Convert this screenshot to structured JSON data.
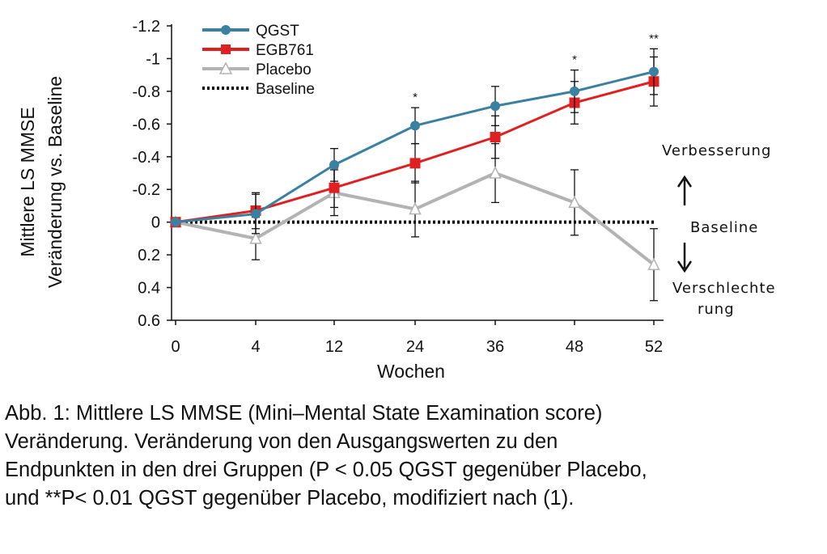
{
  "chart_data": {
    "type": "line",
    "ylabel_line1": "Mittlere LS MMSE",
    "ylabel_line2": "Veränderung vs. Baseline",
    "xlabel": "Wochen",
    "x": [
      0,
      4,
      12,
      24,
      36,
      48,
      52
    ],
    "x_tick_labels": [
      "0",
      "4",
      "12",
      "24",
      "36",
      "48",
      "52"
    ],
    "y_ticks": [
      -1.2,
      -1.0,
      -0.8,
      -0.6,
      -0.4,
      -0.2,
      0,
      0.2,
      0.4,
      0.6
    ],
    "y_tick_labels": [
      "-1.2",
      "-1",
      "-0.8",
      "-0.6",
      "-0.4",
      "-0.2",
      "0",
      "0.2",
      "0.4",
      "0.6"
    ],
    "ylim": [
      -1.2,
      0.6
    ],
    "y_inverted": true,
    "series": [
      {
        "name": "QGST",
        "color": "#3a80a0",
        "marker": "circle",
        "values": [
          0,
          -0.05,
          -0.35,
          -0.59,
          -0.71,
          -0.8,
          -0.92
        ],
        "err_upper": [
          0,
          0.12,
          0.1,
          0.11,
          0.12,
          0.13,
          0.14
        ],
        "err_lower": [
          0,
          0.12,
          0.1,
          0.11,
          0.12,
          0.13,
          0.14
        ]
      },
      {
        "name": "EGB761",
        "color": "#e02020",
        "marker": "square",
        "values": [
          0,
          -0.07,
          -0.21,
          -0.36,
          -0.52,
          -0.73,
          -0.86
        ],
        "err_upper": [
          0,
          0.11,
          0.12,
          0.12,
          0.13,
          0.13,
          0.15
        ],
        "err_lower": [
          0,
          0.11,
          0.12,
          0.12,
          0.13,
          0.13,
          0.15
        ]
      },
      {
        "name": "Placebo",
        "color": "#b3b3b3",
        "marker": "triangle-open",
        "values": [
          0,
          0.1,
          -0.18,
          -0.08,
          -0.3,
          -0.12,
          0.26
        ],
        "err_upper": [
          0,
          0.13,
          0.14,
          0.17,
          0.18,
          0.2,
          0.22
        ],
        "err_lower": [
          0,
          0.13,
          0.14,
          0.17,
          0.18,
          0.2,
          0.22
        ]
      },
      {
        "name": "Baseline",
        "color": "#000000",
        "marker": "dotted-line",
        "values": [
          0,
          0,
          0,
          0,
          0,
          0,
          0
        ]
      }
    ],
    "legend_position": "top-left",
    "significance": [
      {
        "x": 24,
        "label": "*"
      },
      {
        "x": 48,
        "label": "*"
      },
      {
        "x": 52,
        "label": "**"
      }
    ],
    "annotations": {
      "improvement": "Verbesserung",
      "baseline": "Baseline",
      "worsening_line1": "Verschlechte",
      "worsening_line2": "rung"
    }
  },
  "caption": {
    "line1": "Abb. 1: Mittlere LS MMSE (Mini–Mental State Examination score)",
    "line2": "Veränderung. Veränderung von den Ausgangswerten zu den",
    "line3": "Endpunkten in den drei Gruppen (P < 0.05 QGST gegenüber Placebo,",
    "line4": "und **P< 0.01 QGST gegenüber Placebo, modifiziert nach (1)."
  }
}
